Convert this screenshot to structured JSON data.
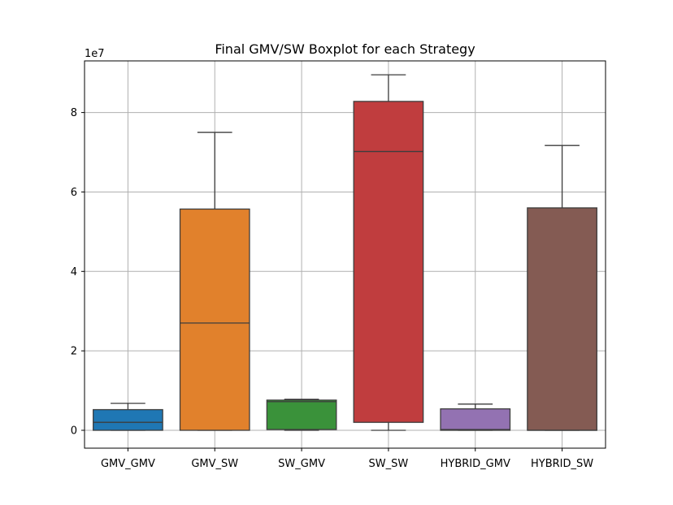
{
  "chart_data": {
    "type": "box",
    "title": "Final GMV/SW Boxplot for each Strategy",
    "xlabel": "",
    "ylabel": "",
    "y_scale_label": "1e7",
    "y_multiplier": 10000000,
    "ylim": [
      -0.45,
      9.3
    ],
    "yticks": [
      0,
      2,
      4,
      6,
      8
    ],
    "grid": true,
    "categories": [
      "GMV_GMV",
      "GMV_SW",
      "SW_GMV",
      "SW_SW",
      "HYBRID_GMV",
      "HYBRID_SW"
    ],
    "boxes": [
      {
        "category": "GMV_GMV",
        "whisker_low": 0,
        "q1": 0.0,
        "median": 0.2,
        "q3": 0.52,
        "whisker_high": 0.68,
        "color": "#1f77b4"
      },
      {
        "category": "GMV_SW",
        "whisker_low": 0,
        "q1": 0.0,
        "median": 2.7,
        "q3": 5.57,
        "whisker_high": 7.5,
        "color": "#e1812c"
      },
      {
        "category": "SW_GMV",
        "whisker_low": 0,
        "q1": 0.02,
        "median": 0.72,
        "q3": 0.76,
        "whisker_high": 0.78,
        "color": "#3a923a"
      },
      {
        "category": "SW_SW",
        "whisker_low": 0,
        "q1": 0.2,
        "median": 7.02,
        "q3": 8.28,
        "whisker_high": 8.95,
        "color": "#c03d3e"
      },
      {
        "category": "HYBRID_GMV",
        "whisker_low": 0,
        "q1": 0.0,
        "median": 0.02,
        "q3": 0.54,
        "whisker_high": 0.66,
        "color": "#9372b2"
      },
      {
        "category": "HYBRID_SW",
        "whisker_low": 0,
        "q1": 0.0,
        "median": 0.0,
        "q3": 5.6,
        "whisker_high": 7.17,
        "color": "#845b53"
      }
    ]
  }
}
